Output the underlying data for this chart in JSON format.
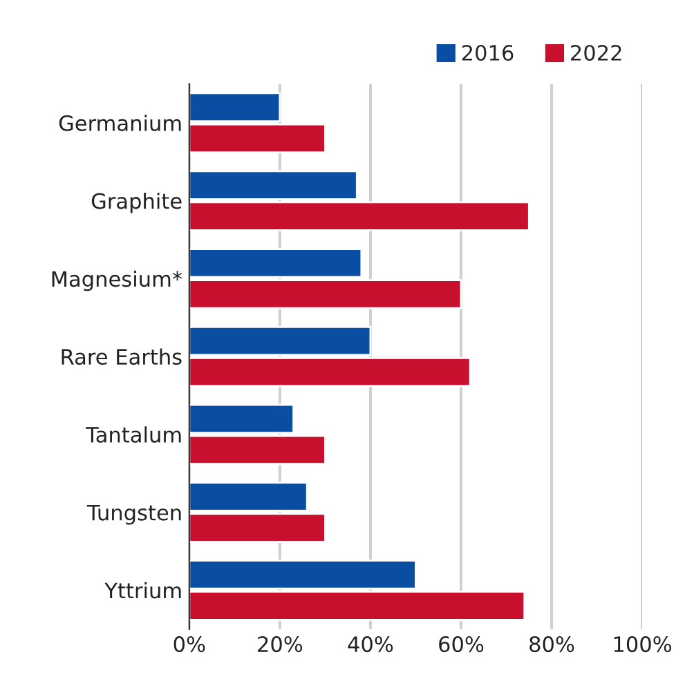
{
  "chart_data": {
    "type": "bar",
    "orientation": "horizontal",
    "categories": [
      "Germanium",
      "Graphite",
      "Magnesium*",
      "Rare Earths",
      "Tantalum",
      "Tungsten",
      "Yttrium"
    ],
    "series": [
      {
        "name": "2016",
        "color": "#0a4ea3",
        "values": [
          20,
          37,
          38,
          40,
          23,
          26,
          50
        ]
      },
      {
        "name": "2022",
        "color": "#c8102e",
        "values": [
          30,
          75,
          60,
          62,
          30,
          30,
          74
        ]
      }
    ],
    "xlim": [
      0,
      100
    ],
    "xticks": [
      {
        "value": 0,
        "label": "0%"
      },
      {
        "value": 20,
        "label": "20%"
      },
      {
        "value": 40,
        "label": "40%"
      },
      {
        "value": 60,
        "label": "60%"
      },
      {
        "value": 80,
        "label": "80%"
      },
      {
        "value": 100,
        "label": "100%"
      }
    ],
    "grid": "x",
    "legend": "top right"
  }
}
